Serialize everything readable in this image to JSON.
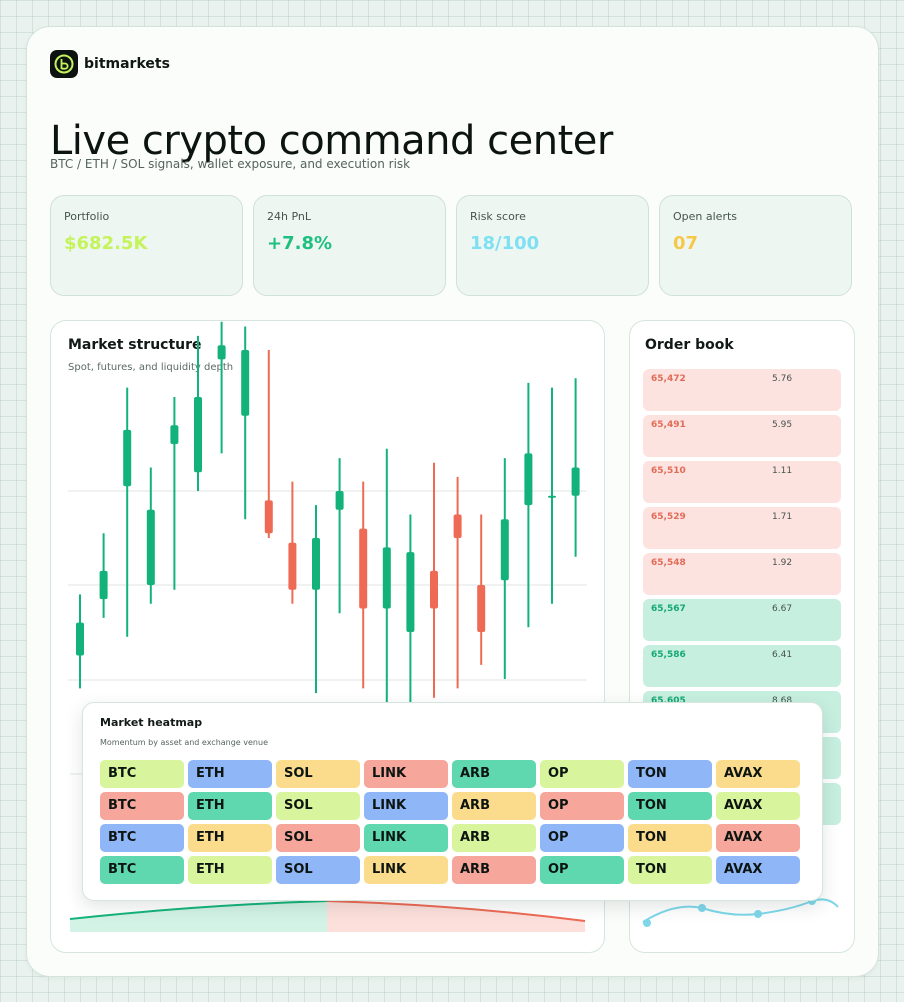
{
  "brand": {
    "name": "bitmarkets"
  },
  "hero": {
    "title": "Live crypto command center",
    "subtitle": "BTC / ETH / SOL signals, wallet exposure, and execution risk"
  },
  "kpis": [
    {
      "label": "Portfolio",
      "value": "$682.5K",
      "color": "#c4f35c"
    },
    {
      "label": "24h PnL",
      "value": "+7.8%",
      "color": "#1fbf80"
    },
    {
      "label": "Risk score",
      "value": "18/100",
      "color": "#7ee0f2"
    },
    {
      "label": "Open alerts",
      "value": "07",
      "color": "#f5c84a"
    }
  ],
  "market": {
    "title": "Market structure",
    "subtitle": "Spot, futures, and liquidity depth"
  },
  "chart_data": {
    "type": "candlestick",
    "colors": {
      "up": "#12b27a",
      "down": "#ef6a55"
    },
    "candles": [
      {
        "open": 44.5,
        "close": 45.2,
        "high": 45.8,
        "low": 43.8
      },
      {
        "open": 45.7,
        "close": 46.3,
        "high": 47.1,
        "low": 45.3
      },
      {
        "open": 48.1,
        "close": 49.3,
        "high": 50.2,
        "low": 44.9
      },
      {
        "open": 46.0,
        "close": 47.6,
        "high": 48.5,
        "low": 45.6
      },
      {
        "open": 49.0,
        "close": 49.4,
        "high": 50.0,
        "low": 45.9
      },
      {
        "open": 48.4,
        "close": 50.0,
        "high": 51.3,
        "low": 48.0
      },
      {
        "open": 50.8,
        "close": 51.1,
        "high": 51.6,
        "low": 48.8
      },
      {
        "open": 49.6,
        "close": 51.0,
        "high": 51.5,
        "low": 47.4
      },
      {
        "open": 47.8,
        "close": 47.1,
        "high": 51.0,
        "low": 47.0
      },
      {
        "open": 46.9,
        "close": 45.9,
        "high": 48.2,
        "low": 45.6
      },
      {
        "open": 45.9,
        "close": 47.0,
        "high": 47.7,
        "low": 43.7
      },
      {
        "open": 47.6,
        "close": 48.0,
        "high": 48.7,
        "low": 45.4
      },
      {
        "open": 47.2,
        "close": 45.5,
        "high": 48.2,
        "low": 43.8
      },
      {
        "open": 45.5,
        "close": 46.8,
        "high": 48.9,
        "low": 43.4
      },
      {
        "open": 45.0,
        "close": 46.7,
        "high": 47.5,
        "low": 42.8
      },
      {
        "open": 46.3,
        "close": 45.5,
        "high": 48.6,
        "low": 43.6
      },
      {
        "open": 47.5,
        "close": 47.0,
        "high": 48.3,
        "low": 43.8
      },
      {
        "open": 46.0,
        "close": 45.0,
        "high": 47.5,
        "low": 44.3
      },
      {
        "open": 46.1,
        "close": 47.4,
        "high": 48.7,
        "low": 44.0
      },
      {
        "open": 47.7,
        "close": 48.8,
        "high": 50.3,
        "low": 45.1
      },
      {
        "open": 47.9,
        "close": 47.9,
        "high": 50.2,
        "low": 45.6
      },
      {
        "open": 47.9,
        "close": 48.5,
        "high": 50.4,
        "low": 46.6
      }
    ]
  },
  "orderbook": {
    "title": "Order book",
    "rows": [
      {
        "price": "65,472",
        "size": "5.76",
        "side": "ask"
      },
      {
        "price": "65,491",
        "size": "5.95",
        "side": "ask"
      },
      {
        "price": "65,510",
        "size": "1.11",
        "side": "ask"
      },
      {
        "price": "65,529",
        "size": "1.71",
        "side": "ask"
      },
      {
        "price": "65,548",
        "size": "1.92",
        "side": "ask"
      },
      {
        "price": "65,567",
        "size": "6.67",
        "side": "bid"
      },
      {
        "price": "65,586",
        "size": "6.41",
        "side": "bid"
      },
      {
        "price": "65,605",
        "size": "8.68",
        "side": "bid"
      },
      {
        "price": "",
        "size": "",
        "side": "bid"
      },
      {
        "price": "",
        "size": "",
        "side": "bid"
      }
    ],
    "colors": {
      "ask_bg": "#fde3e0",
      "ask_text": "#e26b58",
      "bid_bg": "#c7efe0",
      "bid_text": "#14a874"
    }
  },
  "heatmap": {
    "title": "Market heatmap",
    "subtitle": "Momentum by asset and exchange venue",
    "rows": [
      [
        {
          "label": "BTC",
          "color": "#d8f59d"
        },
        {
          "label": "ETH",
          "color": "#8fb6f7"
        },
        {
          "label": "SOL",
          "color": "#fbdb8c"
        },
        {
          "label": "LINK",
          "color": "#f6a69a"
        },
        {
          "label": "ARB",
          "color": "#5fd8b0"
        },
        {
          "label": "OP",
          "color": "#d8f59d"
        },
        {
          "label": "TON",
          "color": "#8fb6f7"
        },
        {
          "label": "AVAX",
          "color": "#fbdb8c"
        }
      ],
      [
        {
          "label": "BTC",
          "color": "#f6a69a"
        },
        {
          "label": "ETH",
          "color": "#5fd8b0"
        },
        {
          "label": "SOL",
          "color": "#d8f59d"
        },
        {
          "label": "LINK",
          "color": "#8fb6f7"
        },
        {
          "label": "ARB",
          "color": "#fbdb8c"
        },
        {
          "label": "OP",
          "color": "#f6a69a"
        },
        {
          "label": "TON",
          "color": "#5fd8b0"
        },
        {
          "label": "AVAX",
          "color": "#d8f59d"
        }
      ],
      [
        {
          "label": "BTC",
          "color": "#8fb6f7"
        },
        {
          "label": "ETH",
          "color": "#fbdb8c"
        },
        {
          "label": "SOL",
          "color": "#f6a69a"
        },
        {
          "label": "LINK",
          "color": "#5fd8b0"
        },
        {
          "label": "ARB",
          "color": "#d8f59d"
        },
        {
          "label": "OP",
          "color": "#8fb6f7"
        },
        {
          "label": "TON",
          "color": "#fbdb8c"
        },
        {
          "label": "AVAX",
          "color": "#f6a69a"
        }
      ],
      [
        {
          "label": "BTC",
          "color": "#5fd8b0"
        },
        {
          "label": "ETH",
          "color": "#d8f59d"
        },
        {
          "label": "SOL",
          "color": "#8fb6f7"
        },
        {
          "label": "LINK",
          "color": "#fbdb8c"
        },
        {
          "label": "ARB",
          "color": "#f6a69a"
        },
        {
          "label": "OP",
          "color": "#5fd8b0"
        },
        {
          "label": "TON",
          "color": "#d8f59d"
        },
        {
          "label": "AVAX",
          "color": "#8fb6f7"
        }
      ]
    ]
  }
}
